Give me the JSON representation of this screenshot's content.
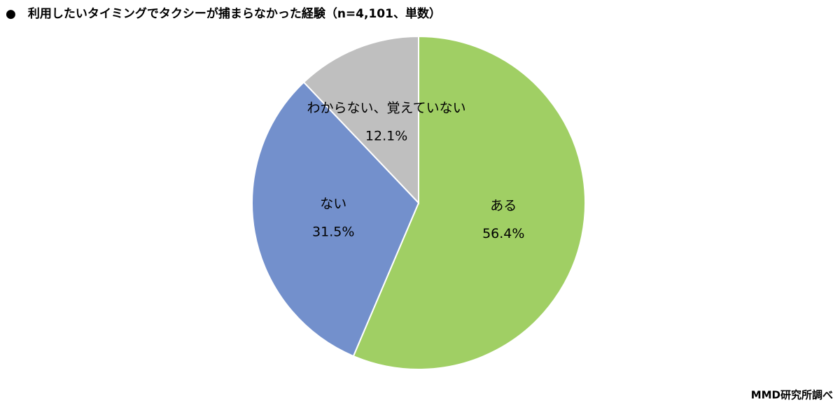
{
  "chart_data": {
    "type": "pie",
    "title": "●　利用したいタイミングでタクシーが捕まらなかった経験（n=4,101、単数）",
    "source": "MMD研究所調べ",
    "categories": [
      "ある",
      "ない",
      "わからない、覚えていない"
    ],
    "values": [
      56.4,
      31.5,
      12.1
    ],
    "value_labels": [
      "56.4%",
      "31.5%",
      "12.1%"
    ],
    "colors": [
      "#a0cf64",
      "#7390cc",
      "#bfbfbf"
    ]
  }
}
